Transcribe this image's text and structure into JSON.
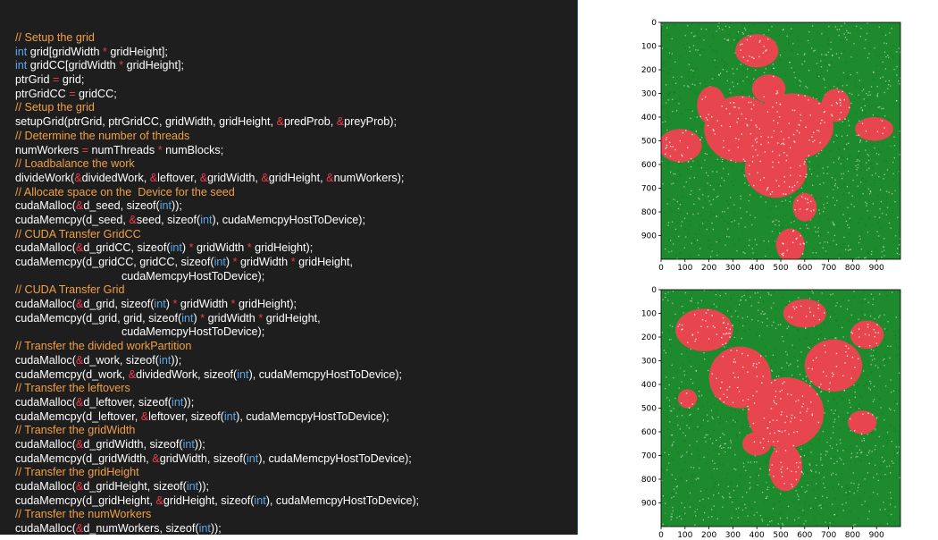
{
  "code": {
    "lines": [
      [
        [
          "c",
          "// Setup the grid"
        ]
      ],
      [
        [
          "k",
          "int"
        ],
        [
          "n",
          " grid[gridWidth "
        ],
        [
          "o",
          "*"
        ],
        [
          "n",
          " gridHeight];"
        ]
      ],
      [
        [
          "k",
          "int"
        ],
        [
          "n",
          " gridCC[gridWidth "
        ],
        [
          "o",
          "*"
        ],
        [
          "n",
          " gridHeight];"
        ]
      ],
      [
        [
          "n",
          "ptrGrid "
        ],
        [
          "o",
          "="
        ],
        [
          "n",
          " grid;"
        ]
      ],
      [
        [
          "n",
          "ptrGridCC "
        ],
        [
          "o",
          "="
        ],
        [
          "n",
          " gridCC;"
        ]
      ],
      [
        [
          "c",
          "// Setup the grid"
        ]
      ],
      [
        [
          "n",
          "setupGrid(ptrGrid, ptrGridCC, gridWidth, gridHeight, "
        ],
        [
          "o",
          "&"
        ],
        [
          "n",
          "predProb, "
        ],
        [
          "o",
          "&"
        ],
        [
          "n",
          "preyProb);"
        ]
      ],
      [
        [
          "c",
          "// Determine the number of threads"
        ]
      ],
      [
        [
          "n",
          "numWorkers "
        ],
        [
          "o",
          "="
        ],
        [
          "n",
          " numThreads "
        ],
        [
          "o",
          "*"
        ],
        [
          "n",
          " numBlocks;"
        ]
      ],
      [
        [
          "c",
          "// Loadbalance the work"
        ]
      ],
      [
        [
          "n",
          "divideWork("
        ],
        [
          "o",
          "&"
        ],
        [
          "n",
          "dividedWork, "
        ],
        [
          "o",
          "&"
        ],
        [
          "n",
          "leftover, "
        ],
        [
          "o",
          "&"
        ],
        [
          "n",
          "gridWidth, "
        ],
        [
          "o",
          "&"
        ],
        [
          "n",
          "gridHeight, "
        ],
        [
          "o",
          "&"
        ],
        [
          "n",
          "numWorkers);"
        ]
      ],
      [
        [
          "c",
          "// Allocate space on the  Device for the seed"
        ]
      ],
      [
        [
          "n",
          "cudaMalloc("
        ],
        [
          "o",
          "&"
        ],
        [
          "n",
          "d_seed, sizeof("
        ],
        [
          "k",
          "int"
        ],
        [
          "n",
          "));"
        ]
      ],
      [
        [
          "n",
          "cudaMemcpy(d_seed, "
        ],
        [
          "o",
          "&"
        ],
        [
          "n",
          "seed, sizeof("
        ],
        [
          "k",
          "int"
        ],
        [
          "n",
          "), cudaMemcpyHostToDevice);"
        ]
      ],
      [
        [
          "c",
          "// CUDA Transfer GridCC"
        ]
      ],
      [
        [
          "n",
          "cudaMalloc("
        ],
        [
          "o",
          "&"
        ],
        [
          "n",
          "d_gridCC, sizeof("
        ],
        [
          "k",
          "int"
        ],
        [
          "n",
          ") "
        ],
        [
          "o",
          "*"
        ],
        [
          "n",
          " gridWidth "
        ],
        [
          "o",
          "*"
        ],
        [
          "n",
          " gridHeight);"
        ]
      ],
      [
        [
          "n",
          "cudaMemcpy(d_gridCC, gridCC, sizeof("
        ],
        [
          "k",
          "int"
        ],
        [
          "n",
          ") "
        ],
        [
          "o",
          "*"
        ],
        [
          "n",
          " gridWidth "
        ],
        [
          "o",
          "*"
        ],
        [
          "n",
          " gridHeight,"
        ]
      ],
      [
        [
          "n",
          "                                  cudaMemcpyHostToDevice);"
        ]
      ],
      [
        [
          "c",
          "// CUDA Transfer Grid"
        ]
      ],
      [
        [
          "n",
          "cudaMalloc("
        ],
        [
          "o",
          "&"
        ],
        [
          "n",
          "d_grid, sizeof("
        ],
        [
          "k",
          "int"
        ],
        [
          "n",
          ") "
        ],
        [
          "o",
          "*"
        ],
        [
          "n",
          " gridWidth "
        ],
        [
          "o",
          "*"
        ],
        [
          "n",
          " gridHeight);"
        ]
      ],
      [
        [
          "n",
          "cudaMemcpy(d_grid, grid, sizeof("
        ],
        [
          "k",
          "int"
        ],
        [
          "n",
          ") "
        ],
        [
          "o",
          "*"
        ],
        [
          "n",
          " gridWidth "
        ],
        [
          "o",
          "*"
        ],
        [
          "n",
          " gridHeight,"
        ]
      ],
      [
        [
          "n",
          "                                  cudaMemcpyHostToDevice);"
        ]
      ],
      [
        [
          "c",
          "// Transfer the divided workPartition"
        ]
      ],
      [
        [
          "n",
          "cudaMalloc("
        ],
        [
          "o",
          "&"
        ],
        [
          "n",
          "d_work, sizeof("
        ],
        [
          "k",
          "int"
        ],
        [
          "n",
          "));"
        ]
      ],
      [
        [
          "n",
          "cudaMemcpy(d_work, "
        ],
        [
          "o",
          "&"
        ],
        [
          "n",
          "dividedWork, sizeof("
        ],
        [
          "k",
          "int"
        ],
        [
          "n",
          "), cudaMemcpyHostToDevice);"
        ]
      ],
      [
        [
          "c",
          "// Transfer the leftovers"
        ]
      ],
      [
        [
          "n",
          "cudaMalloc("
        ],
        [
          "o",
          "&"
        ],
        [
          "n",
          "d_leftover, sizeof("
        ],
        [
          "k",
          "int"
        ],
        [
          "n",
          "));"
        ]
      ],
      [
        [
          "n",
          "cudaMemcpy(d_leftover, "
        ],
        [
          "o",
          "&"
        ],
        [
          "n",
          "leftover, sizeof("
        ],
        [
          "k",
          "int"
        ],
        [
          "n",
          "), cudaMemcpyHostToDevice);"
        ]
      ],
      [
        [
          "c",
          "// Transfer the gridWidth"
        ]
      ],
      [
        [
          "n",
          "cudaMalloc("
        ],
        [
          "o",
          "&"
        ],
        [
          "n",
          "d_gridWidth, sizeof("
        ],
        [
          "k",
          "int"
        ],
        [
          "n",
          "));"
        ]
      ],
      [
        [
          "n",
          "cudaMemcpy(d_gridWidth, "
        ],
        [
          "o",
          "&"
        ],
        [
          "n",
          "gridWidth, sizeof("
        ],
        [
          "k",
          "int"
        ],
        [
          "n",
          "), cudaMemcpyHostToDevice);"
        ]
      ],
      [
        [
          "c",
          "// Transfer the gridHeight"
        ]
      ],
      [
        [
          "n",
          "cudaMalloc("
        ],
        [
          "o",
          "&"
        ],
        [
          "n",
          "d_gridHeight, sizeof("
        ],
        [
          "k",
          "int"
        ],
        [
          "n",
          "));"
        ]
      ],
      [
        [
          "n",
          "cudaMemcpy(d_gridHeight, "
        ],
        [
          "o",
          "&"
        ],
        [
          "n",
          "gridHeight, sizeof("
        ],
        [
          "k",
          "int"
        ],
        [
          "n",
          "), cudaMemcpyHostToDevice);"
        ]
      ],
      [
        [
          "c",
          "// Transfer the numWorkers"
        ]
      ],
      [
        [
          "n",
          "cudaMalloc("
        ],
        [
          "o",
          "&"
        ],
        [
          "n",
          "d_numWorkers, sizeof("
        ],
        [
          "k",
          "int"
        ],
        [
          "n",
          "));"
        ]
      ]
    ]
  },
  "plots": [
    {
      "id": "top",
      "y_ticks": [
        "0",
        "100",
        "200",
        "300",
        "400",
        "500",
        "600",
        "700",
        "800",
        "900"
      ],
      "x_ticks": [
        "0",
        "100",
        "200",
        "300",
        "400",
        "500",
        "600",
        "700",
        "800",
        "900"
      ]
    },
    {
      "id": "bottom",
      "y_ticks": [
        "0",
        "100",
        "200",
        "300",
        "400",
        "500",
        "600",
        "700",
        "800",
        "900"
      ],
      "x_ticks": [
        "0",
        "100",
        "200",
        "300",
        "400",
        "500",
        "600",
        "700",
        "800",
        "900"
      ]
    }
  ],
  "colors": {
    "background_field": "#1e8a2e",
    "predator_region": "#e8464e",
    "empty_cells": "#ffffff",
    "code_background": "#1e1e1e"
  }
}
